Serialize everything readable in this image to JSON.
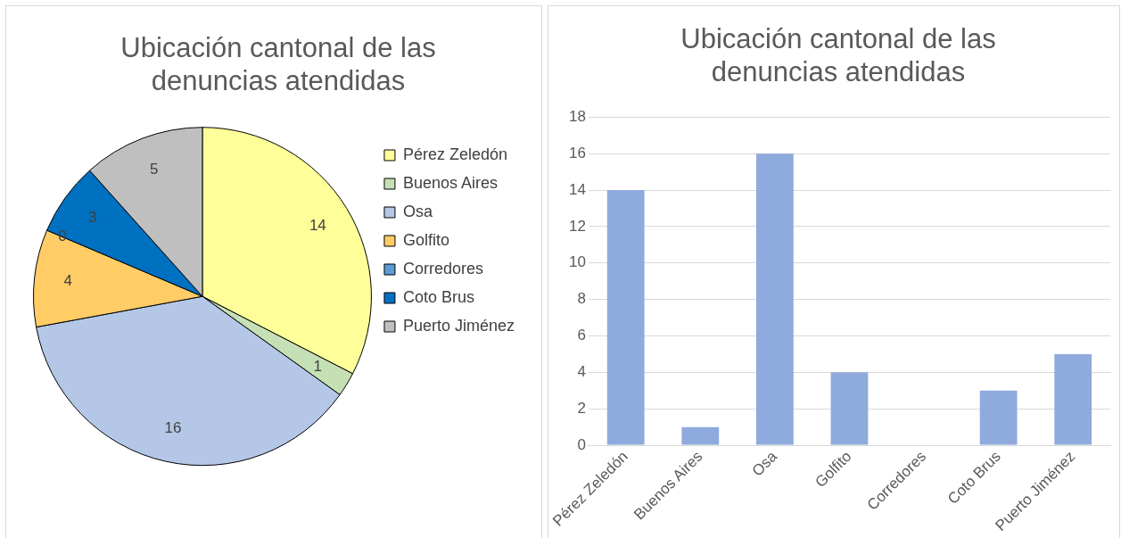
{
  "chart_data": [
    {
      "type": "pie",
      "title": "Ubicación cantonal de las denuncias atendidas",
      "categories": [
        "Pérez Zeledón",
        "Buenos Aires",
        "Osa",
        "Golfito",
        "Corredores",
        "Coto Brus",
        "Puerto Jiménez"
      ],
      "values": [
        14,
        1,
        16,
        4,
        0,
        3,
        5
      ],
      "colors": [
        "#ffff99",
        "#c5e0b4",
        "#b4c7e7",
        "#ffcc66",
        "#5b9bd5",
        "#0070c0",
        "#bfbfbf"
      ],
      "value_labels": [
        "14",
        "1",
        "16",
        "4",
        "0",
        "3",
        "5"
      ],
      "legend": "right"
    },
    {
      "type": "bar",
      "title": "Ubicación cantonal de las denuncias atendidas",
      "categories": [
        "Pérez Zeledón",
        "Buenos Aires",
        "Osa",
        "Golfito",
        "Corredores",
        "Coto Brus",
        "Puerto Jiménez"
      ],
      "values": [
        14,
        1,
        16,
        4,
        0,
        3,
        5
      ],
      "color": "#8faadc",
      "ylim": [
        0,
        18
      ],
      "yticks": [
        0,
        2,
        4,
        6,
        8,
        10,
        12,
        14,
        16,
        18
      ],
      "grid": "y"
    }
  ]
}
